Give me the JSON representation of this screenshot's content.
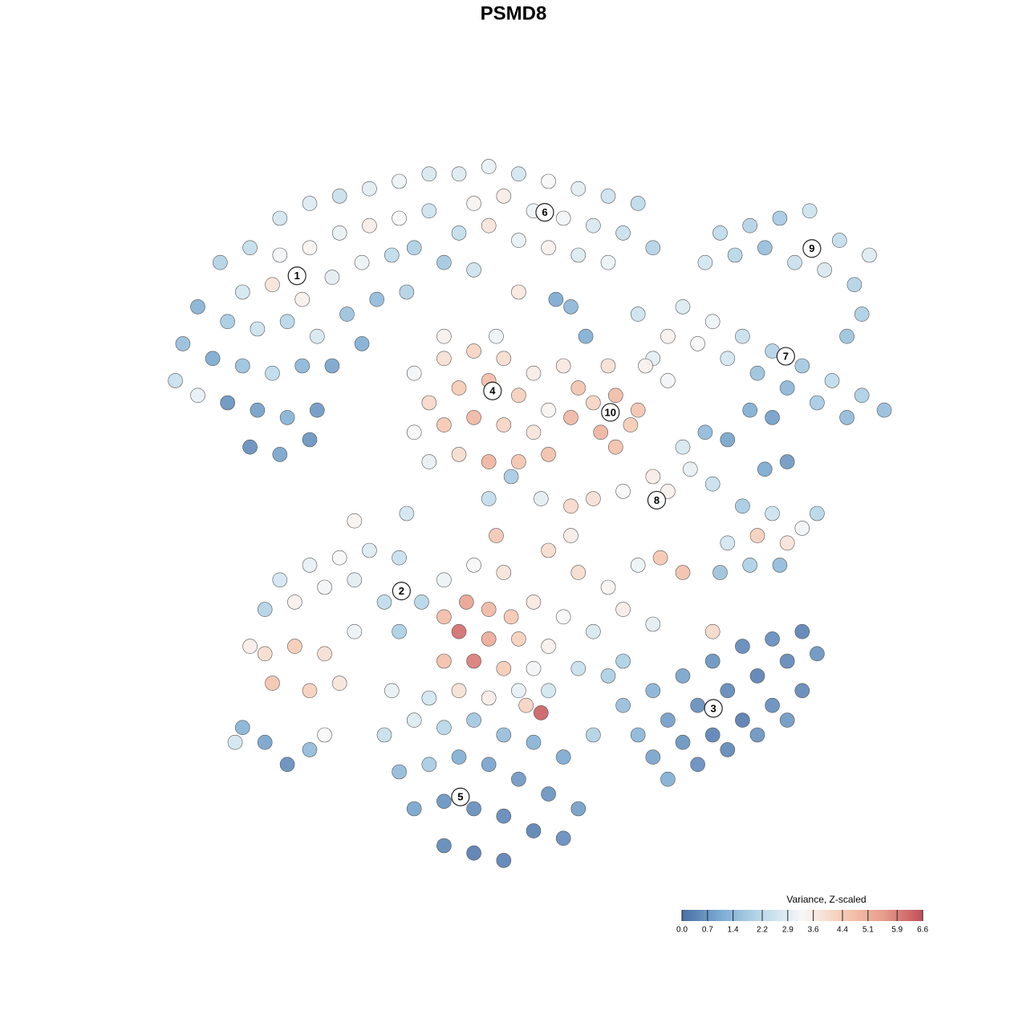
{
  "chart_data": {
    "type": "scatter",
    "title": "PSMD8",
    "x": [
      16,
      20,
      24,
      28,
      32,
      36,
      12,
      16,
      20,
      24,
      28,
      32,
      36,
      8,
      11,
      15,
      19,
      23,
      27,
      31,
      34,
      5,
      9,
      13,
      17,
      21,
      25,
      29,
      33,
      3,
      7,
      11,
      15,
      19,
      23,
      27,
      9,
      13,
      17,
      21,
      12,
      16,
      20,
      2,
      5,
      40,
      44,
      48,
      52,
      56,
      60,
      64,
      42,
      46,
      50,
      54,
      58,
      62,
      66,
      40,
      44,
      48,
      52,
      56,
      60,
      38,
      42,
      53,
      55,
      48,
      57,
      75,
      79,
      83,
      87,
      91,
      95,
      73,
      77,
      81,
      85,
      89,
      93,
      94,
      92,
      70,
      74,
      78,
      82,
      86,
      90,
      94,
      97,
      76,
      80,
      84,
      88,
      92,
      68,
      66,
      72,
      64,
      34,
      38,
      42,
      46,
      50,
      36,
      40,
      44,
      48,
      52,
      34,
      38,
      42,
      46,
      50,
      36,
      40,
      44,
      48,
      54,
      56,
      52,
      38,
      45,
      58,
      61,
      64,
      59,
      63,
      61,
      55,
      60,
      65,
      68,
      70,
      73,
      76,
      79,
      82,
      71,
      74,
      78,
      82,
      86,
      80,
      84,
      76,
      88,
      75,
      79,
      83,
      62,
      58,
      55,
      66,
      68,
      81,
      84,
      26,
      33,
      44,
      47,
      51,
      55,
      52,
      16,
      20,
      24,
      28,
      32,
      14,
      18,
      22,
      26,
      30,
      14,
      18,
      22,
      15,
      20,
      24,
      12,
      26,
      32,
      35,
      38,
      41,
      44,
      47,
      50,
      40,
      44,
      48,
      52,
      38,
      42,
      46,
      50,
      40,
      44,
      48,
      52,
      56,
      60,
      64,
      67,
      70,
      62,
      66,
      58,
      56,
      60,
      51,
      49,
      45,
      42,
      46,
      38,
      54,
      62,
      66,
      70,
      74,
      78,
      82,
      86,
      64,
      68,
      72,
      76,
      80,
      84,
      88,
      66,
      70,
      74,
      78,
      82,
      86,
      68,
      72,
      76,
      80,
      84,
      62,
      58,
      74,
      30,
      34,
      38,
      42,
      46,
      50,
      54,
      32,
      36,
      40,
      44,
      48,
      52,
      56,
      34,
      38,
      42,
      46,
      50,
      54,
      38,
      42,
      46,
      36,
      31,
      11,
      14,
      17,
      20,
      10,
      22
    ],
    "y": [
      90,
      92,
      93,
      94,
      95,
      96,
      86,
      85,
      86,
      88,
      89,
      90,
      91,
      84,
      80,
      81,
      79,
      82,
      84,
      85,
      86,
      78,
      76,
      75,
      76,
      74,
      77,
      79,
      80,
      73,
      71,
      70,
      69,
      70,
      70,
      73,
      65,
      64,
      63,
      64,
      59,
      58,
      60,
      68,
      66,
      96,
      97,
      96,
      95,
      94,
      93,
      92,
      92,
      93,
      91,
      90,
      89,
      88,
      86,
      88,
      89,
      87,
      86,
      85,
      84,
      84,
      83,
      79,
      78,
      80,
      74,
      88,
      89,
      90,
      91,
      87,
      85,
      84,
      85,
      86,
      84,
      83,
      81,
      77,
      74,
      78,
      76,
      74,
      72,
      70,
      68,
      66,
      64,
      71,
      69,
      67,
      65,
      63,
      74,
      71,
      73,
      77,
      69,
      71,
      72,
      71,
      69,
      65,
      67,
      68,
      66,
      64,
      61,
      62,
      63,
      62,
      61,
      57,
      58,
      57,
      57,
      70,
      67,
      58,
      74,
      74,
      65,
      66,
      64,
      61,
      62,
      59,
      63,
      70,
      70,
      68,
      59,
      61,
      60,
      64,
      63,
      56,
      54,
      51,
      50,
      48,
      47,
      46,
      46,
      50,
      42,
      43,
      43,
      53,
      52,
      51,
      55,
      53,
      56,
      57,
      49,
      50,
      52,
      55,
      52,
      47,
      45,
      41,
      43,
      44,
      45,
      44,
      37,
      38,
      40,
      41,
      38,
      31,
      32,
      31,
      27,
      26,
      27,
      32,
      34,
      34,
      38,
      36,
      38,
      37,
      36,
      38,
      34,
      33,
      33,
      32,
      30,
      30,
      29,
      29,
      26,
      25,
      26,
      26,
      42,
      40,
      43,
      44,
      42,
      37,
      35,
      34,
      29,
      28,
      23,
      24,
      47,
      43,
      42,
      41,
      36,
      24,
      26,
      28,
      30,
      32,
      33,
      34,
      20,
      22,
      24,
      26,
      28,
      30,
      31,
      17,
      19,
      20,
      22,
      24,
      26,
      14,
      16,
      18,
      20,
      22,
      30,
      20,
      34,
      20,
      22,
      21,
      22,
      20,
      19,
      17,
      15,
      16,
      17,
      16,
      14,
      12,
      10,
      10,
      11,
      10,
      9,
      7,
      6,
      5,
      4,
      3,
      25,
      26,
      21,
      19,
      16,
      18,
      19,
      20
    ],
    "values": [
      2.6,
      2.8,
      2.4,
      2.9,
      3.1,
      2.7,
      2.3,
      3.2,
      3.4,
      3.0,
      3.6,
      3.3,
      2.5,
      2.0,
      2.6,
      3.8,
      3.5,
      2.9,
      3.1,
      2.2,
      1.9,
      1.2,
      1.8,
      2.5,
      2.1,
      2.7,
      1.6,
      1.4,
      2.0,
      1.5,
      1.0,
      1.6,
      2.2,
      1.3,
      0.9,
      1.1,
      0.6,
      0.8,
      1.2,
      0.7,
      0.5,
      0.9,
      0.6,
      2.4,
      3.0,
      2.8,
      3.0,
      2.6,
      3.3,
      2.9,
      2.5,
      2.2,
      3.4,
      3.6,
      3.1,
      3.2,
      2.7,
      2.4,
      2.0,
      2.3,
      3.8,
      3.0,
      3.5,
      2.8,
      3.1,
      1.7,
      2.5,
      1.0,
      1.3,
      3.7,
      1.1,
      2.2,
      2.0,
      1.8,
      2.5,
      2.3,
      2.8,
      2.6,
      2.1,
      1.5,
      2.4,
      2.7,
      2.0,
      1.9,
      1.6,
      2.8,
      3.1,
      2.4,
      2.0,
      1.7,
      2.2,
      1.9,
      1.5,
      2.6,
      1.6,
      1.3,
      1.8,
      1.4,
      3.5,
      2.9,
      3.3,
      2.5,
      3.2,
      3.9,
      4.2,
      4.0,
      3.6,
      4.1,
      4.4,
      4.8,
      4.3,
      3.4,
      3.3,
      4.5,
      4.9,
      4.2,
      3.8,
      3.0,
      4.0,
      5.0,
      4.6,
      3.7,
      4.6,
      4.7,
      3.5,
      3.1,
      4.2,
      4.8,
      4.6,
      5.0,
      4.4,
      4.7,
      4.9,
      3.9,
      3.5,
      3.2,
      2.7,
      1.4,
      0.9,
      1.1,
      0.8,
      3.0,
      2.4,
      1.8,
      2.5,
      3.2,
      4.3,
      3.8,
      2.6,
      2.1,
      1.6,
      1.9,
      1.4,
      3.3,
      3.9,
      4.1,
      3.6,
      3.5,
      1.0,
      0.7,
      3.4,
      2.6,
      2.3,
      1.8,
      2.9,
      3.6,
      4.0,
      2.6,
      3.0,
      3.3,
      2.8,
      2.4,
      2.0,
      3.5,
      3.2,
      2.9,
      2.2,
      4.0,
      4.4,
      3.9,
      4.6,
      4.3,
      3.8,
      3.6,
      3.1,
      1.9,
      2.1,
      4.8,
      5.4,
      4.9,
      4.5,
      3.7,
      6.2,
      5.2,
      4.3,
      3.5,
      4.7,
      6.0,
      4.4,
      3.2,
      3.9,
      3.6,
      3.0,
      2.6,
      4.0,
      3.4,
      3.1,
      4.5,
      4.7,
      3.6,
      2.9,
      2.7,
      2.4,
      1.9,
      6.4,
      4.2,
      4.5,
      3.3,
      3.8,
      3.1,
      3.3,
      1.5,
      1.2,
      0.9,
      0.6,
      0.4,
      0.5,
      0.3,
      1.3,
      0.8,
      0.5,
      0.4,
      0.3,
      0.4,
      0.6,
      0.9,
      0.6,
      0.3,
      0.2,
      0.5,
      0.4,
      1.1,
      0.5,
      0.4,
      0.6,
      0.7,
      1.9,
      2.0,
      4.1,
      2.4,
      2.8,
      2.1,
      1.7,
      1.5,
      1.2,
      1.0,
      1.4,
      1.8,
      1.1,
      0.9,
      0.7,
      0.6,
      0.8,
      0.9,
      0.6,
      0.5,
      0.4,
      0.3,
      0.5,
      0.4,
      0.2,
      0.3,
      2.6,
      3.0,
      1.2,
      0.9,
      0.5,
      1.4,
      2.6,
      3.3
    ],
    "xlim": [
      0,
      100
    ],
    "ylim": [
      0,
      100
    ],
    "clusters": [
      {
        "label": "1",
        "x": 18.3,
        "y": 82.2
      },
      {
        "label": "2",
        "x": 32.3,
        "y": 39.5
      },
      {
        "label": "3",
        "x": 74.1,
        "y": 23.6
      },
      {
        "label": "4",
        "x": 44.5,
        "y": 66.6
      },
      {
        "label": "5",
        "x": 40.2,
        "y": 11.6
      },
      {
        "label": "6",
        "x": 51.5,
        "y": 90.8
      },
      {
        "label": "7",
        "x": 83.8,
        "y": 71.3
      },
      {
        "label": "8",
        "x": 66.5,
        "y": 51.8
      },
      {
        "label": "9",
        "x": 87.3,
        "y": 85.9
      },
      {
        "label": "10",
        "x": 60.3,
        "y": 63.7
      }
    ],
    "colorbar": {
      "title": "Variance, Z-scaled",
      "clim": [
        0,
        6.6
      ],
      "colors": [
        "#4a6fa5",
        "#7eadd3",
        "#bcdaea",
        "#f7f7f7",
        "#f6cbb5",
        "#e79e8c",
        "#c44e5a"
      ],
      "ticks": [
        {
          "value": 0,
          "label": "0.0"
        },
        0.7,
        1.4,
        2.2,
        2.9,
        3.6,
        4.4,
        5.1,
        5.9,
        6.6
      ]
    }
  }
}
